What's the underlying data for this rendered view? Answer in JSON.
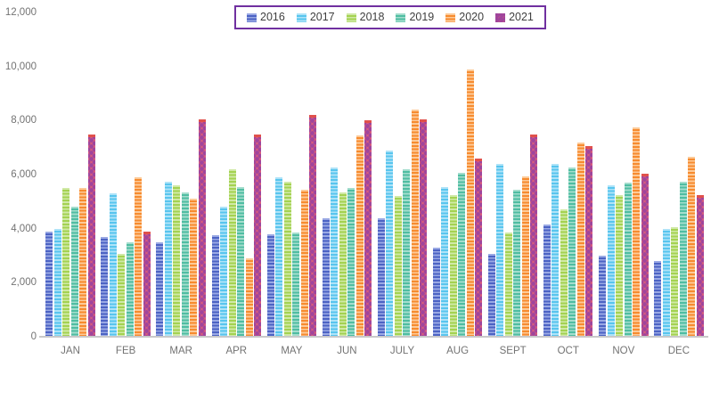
{
  "chart_data": {
    "type": "bar",
    "title": "",
    "categories": [
      "JAN",
      "FEB",
      "MAR",
      "APR",
      "MAY",
      "JUN",
      "JULY",
      "AUG",
      "SEPT",
      "OCT",
      "NOV",
      "DEC"
    ],
    "series": [
      {
        "name": "2016",
        "fill": "stripes",
        "color": "#4c63c4",
        "color_light": "#9aa9e4",
        "values": [
          3900,
          3700,
          3500,
          3750,
          3800,
          4400,
          4400,
          3300,
          3050,
          4150,
          3000,
          2800
        ]
      },
      {
        "name": "2017",
        "fill": "stripes",
        "color": "#58c5ee",
        "color_light": "#aee3f8",
        "values": [
          4000,
          5300,
          5750,
          4800,
          5900,
          6250,
          6900,
          5550,
          6400,
          6400,
          5600,
          4000
        ]
      },
      {
        "name": "2018",
        "fill": "stripes",
        "color": "#a4d251",
        "color_light": "#d0e9a6",
        "values": [
          5500,
          3050,
          5600,
          6200,
          5750,
          5350,
          5200,
          5250,
          3850,
          4700,
          5250,
          4050
        ]
      },
      {
        "name": "2019",
        "fill": "stripes",
        "color": "#4fbda2",
        "color_light": "#a4ddcd",
        "values": [
          4800,
          3500,
          5350,
          5550,
          3850,
          5500,
          6200,
          6050,
          5450,
          6250,
          5700,
          5750
        ]
      },
      {
        "name": "2020",
        "fill": "stripes",
        "color": "#f78b2f",
        "color_light": "#fcca98",
        "values": [
          5500,
          5900,
          5100,
          2900,
          5450,
          7450,
          8400,
          9900,
          5950,
          7200,
          7750,
          6650
        ]
      },
      {
        "name": "2021",
        "fill": "spheres",
        "color": "#d85c7c",
        "dot_color": "#a0459c",
        "cap_color": "#e0514c",
        "values": [
          7400,
          3800,
          7950,
          7400,
          8100,
          7900,
          7950,
          6500,
          7400,
          6950,
          5950,
          5150
        ]
      }
    ],
    "ylim": [
      0,
      12000
    ],
    "ytick_interval": 2000,
    "ytick_labels": [
      "0",
      "2,000",
      "4,000",
      "6,000",
      "8,000",
      "10,000",
      "12,000"
    ],
    "xlabel": "",
    "ylabel": "",
    "grid": false,
    "legend_position": "top-center",
    "legend_border_color": "#7030a0",
    "axis_text_color": "#737373",
    "baseline_color": "#c9c9c9"
  }
}
